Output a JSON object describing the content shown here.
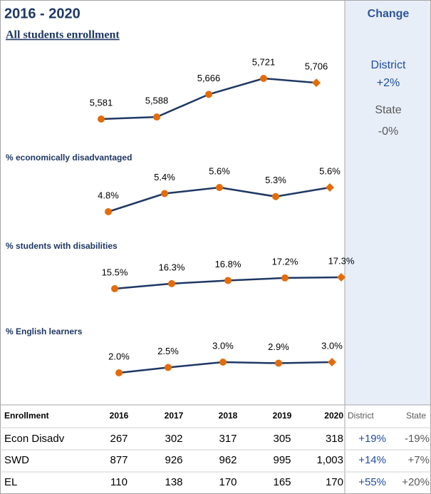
{
  "header": {
    "title": "2016 - 2020"
  },
  "change": {
    "title": "Change",
    "district_label": "District",
    "district_value": "+2%",
    "state_label": "State",
    "state_value": "-0%"
  },
  "chart_data": [
    {
      "type": "line",
      "title": "All students enrollment",
      "values": [
        5581,
        5588,
        5666,
        5721,
        5706
      ],
      "value_labels": [
        "5,581",
        "5,588",
        "5,666",
        "5,721",
        "5,706"
      ],
      "color": "#1f3864",
      "marker_color": "#e36c09"
    },
    {
      "type": "line",
      "title": "% economically disadvantaged",
      "values": [
        4.8,
        5.4,
        5.6,
        5.3,
        5.6
      ],
      "value_labels": [
        "4.8%",
        "5.4%",
        "5.6%",
        "5.3%",
        "5.6%"
      ],
      "color": "#1f3864",
      "marker_color": "#e36c09"
    },
    {
      "type": "line",
      "title": "% students with disabilities",
      "values": [
        15.5,
        16.3,
        16.8,
        17.2,
        17.3
      ],
      "value_labels": [
        "15.5%",
        "16.3%",
        "16.8%",
        "17.2%",
        "17.3%"
      ],
      "color": "#1f3864",
      "marker_color": "#e36c09"
    },
    {
      "type": "line",
      "title": "% English learners",
      "values": [
        2.0,
        2.5,
        3.0,
        2.9,
        3.0
      ],
      "value_labels": [
        "2.0%",
        "2.5%",
        "3.0%",
        "2.9%",
        "3.0%"
      ],
      "color": "#1f3864",
      "marker_color": "#e36c09"
    }
  ],
  "table": {
    "columns": [
      "Enrollment",
      "2016",
      "2017",
      "2018",
      "2019",
      "2020",
      "District",
      "State"
    ],
    "rows": [
      [
        "Econ Disadv",
        "267",
        "302",
        "317",
        "305",
        "318",
        "+19%",
        "-19%"
      ],
      [
        "SWD",
        "877",
        "926",
        "962",
        "995",
        "1,003",
        "+14%",
        "+7%"
      ],
      [
        "EL",
        "110",
        "138",
        "170",
        "165",
        "170",
        "+55%",
        "+20%"
      ]
    ]
  }
}
